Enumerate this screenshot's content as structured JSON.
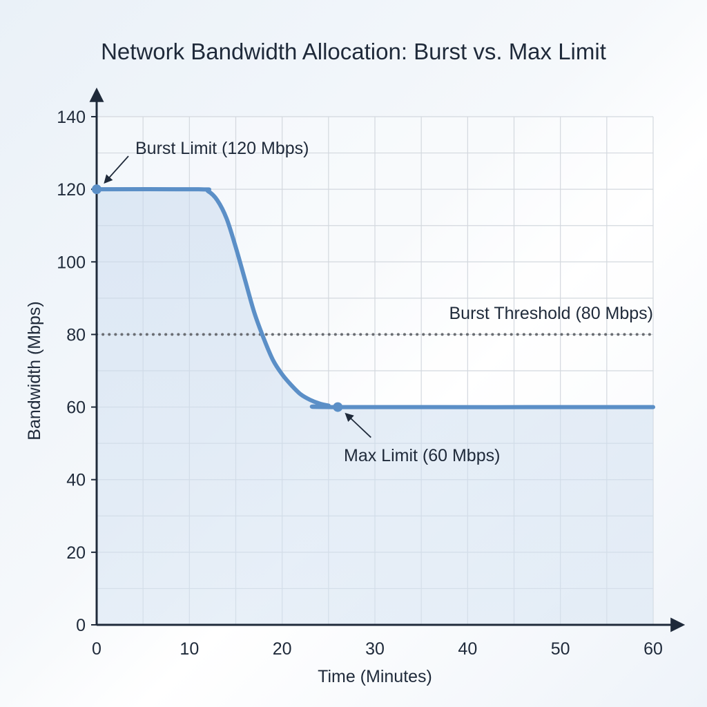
{
  "chart_data": {
    "type": "line",
    "title": "Network Bandwidth Allocation: Burst vs. Max Limit",
    "xlabel": "Time (Minutes)",
    "ylabel": "Bandwidth (Mbps)",
    "xlim": [
      0,
      60
    ],
    "ylim": [
      0,
      140
    ],
    "x_ticks": [
      0,
      10,
      20,
      30,
      40,
      50,
      60
    ],
    "y_ticks": [
      0,
      20,
      40,
      60,
      80,
      100,
      120,
      140
    ],
    "grid": true,
    "series": [
      {
        "name": "",
        "color": "#5b8fc7",
        "points": [
          [
            0,
            120
          ],
          [
            11,
            120
          ],
          [
            12,
            119.5
          ],
          [
            13,
            117
          ],
          [
            14,
            112
          ],
          [
            15,
            104
          ],
          [
            16,
            95
          ],
          [
            17,
            86
          ],
          [
            18,
            79
          ],
          [
            19,
            73
          ],
          [
            20,
            69
          ],
          [
            21,
            66
          ],
          [
            22,
            63.5
          ],
          [
            23,
            62
          ],
          [
            24,
            61
          ],
          [
            25,
            60.4
          ],
          [
            26,
            60
          ],
          [
            60,
            60
          ]
        ]
      }
    ],
    "threshold": {
      "y": 80,
      "label": "Burst Threshold (80 Mbps)",
      "color": "#6b6e73"
    },
    "annotations": [
      {
        "label": "Burst Limit (120 Mbps)",
        "x": 0,
        "y": 120
      },
      {
        "label": "Max Limit (60 Mbps)",
        "x": 26,
        "y": 60
      }
    ]
  }
}
